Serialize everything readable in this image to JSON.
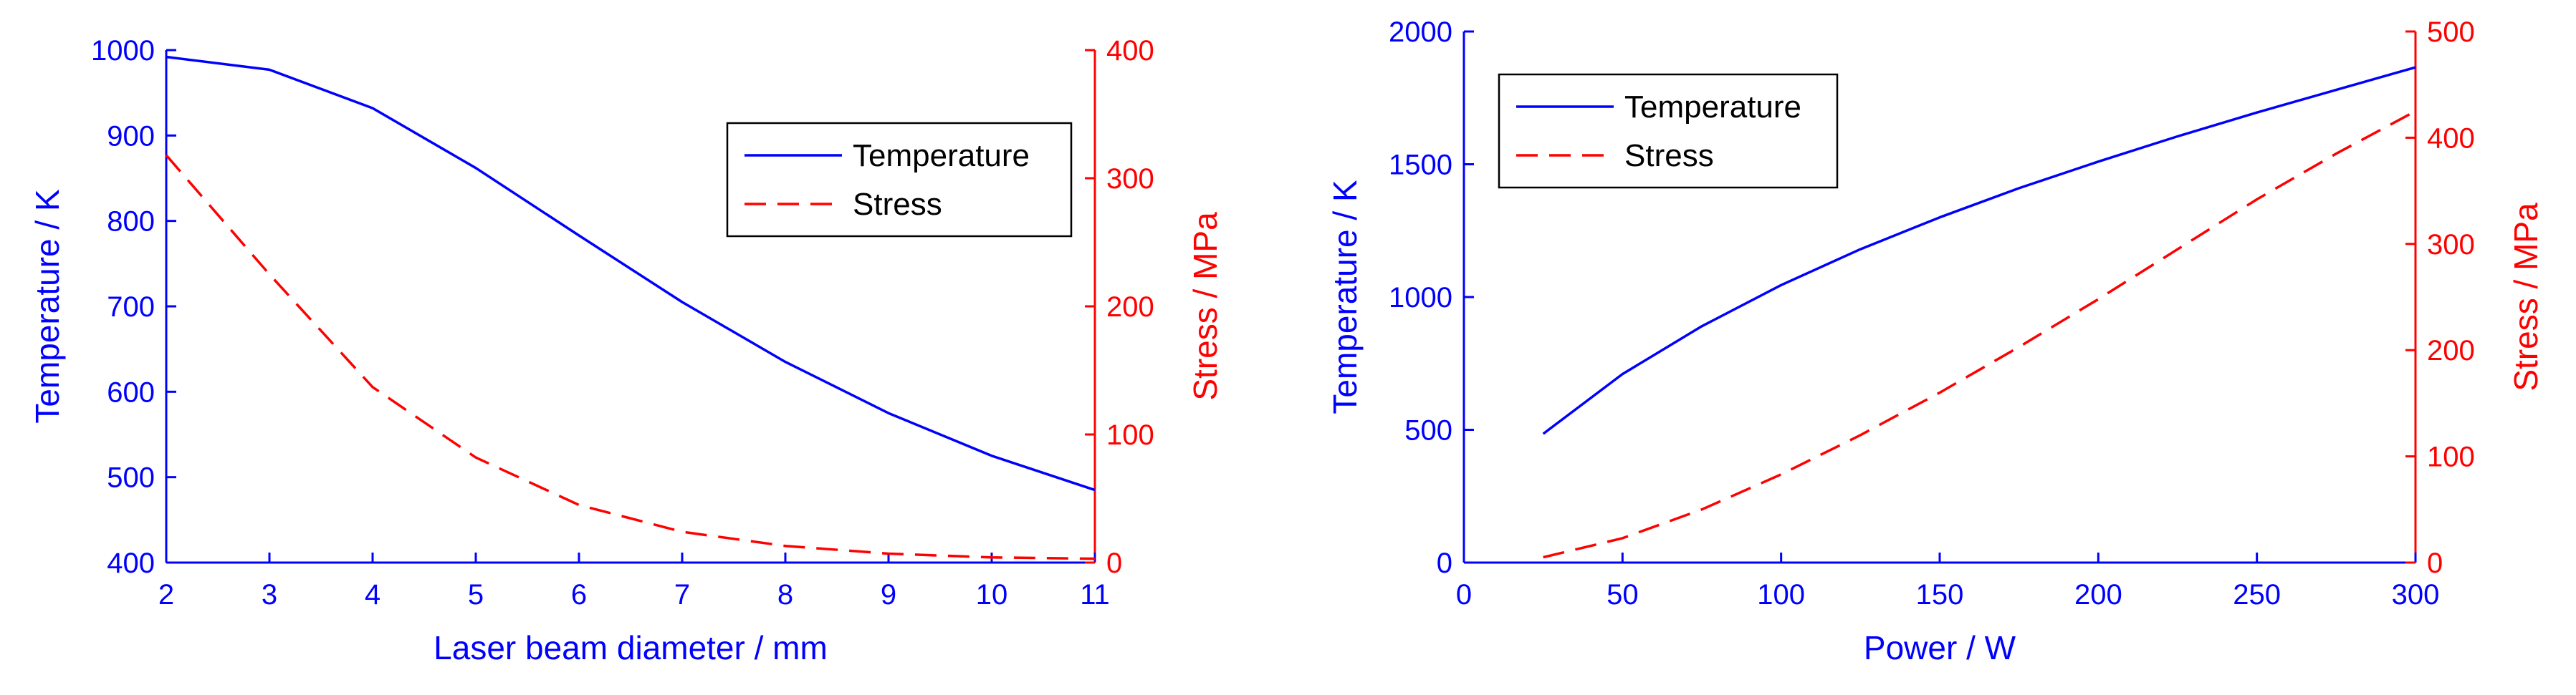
{
  "chart_data": [
    {
      "type": "line",
      "xlabel": "Laser beam diameter / mm",
      "ylabel_left": "Temperature / K",
      "ylabel_right": "Stress / MPa",
      "xlim": [
        2,
        11
      ],
      "ylim_left": [
        400,
        1000
      ],
      "ylim_right": [
        0,
        400
      ],
      "xticks": [
        2,
        3,
        4,
        5,
        6,
        7,
        8,
        9,
        10,
        11
      ],
      "yticks_left": [
        400,
        500,
        600,
        700,
        800,
        900,
        1000
      ],
      "yticks_right": [
        0,
        100,
        200,
        300,
        400
      ],
      "grid": false,
      "legend_position": "top-right",
      "series": [
        {
          "name": "Temperature",
          "axis": "left",
          "style": "solid",
          "color": "#0000ff",
          "x": [
            2,
            3,
            4,
            5,
            6,
            7,
            8,
            9,
            10,
            11
          ],
          "y": [
            992,
            977,
            932,
            862,
            783,
            705,
            635,
            575,
            525,
            485
          ]
        },
        {
          "name": "Stress",
          "axis": "right",
          "style": "dashed",
          "color": "#ff0000",
          "x": [
            2,
            3,
            4,
            5,
            6,
            7,
            8,
            9,
            10,
            11
          ],
          "y": [
            318,
            225,
            137,
            82,
            45,
            24,
            13,
            7,
            4,
            3
          ]
        }
      ]
    },
    {
      "type": "line",
      "xlabel": "Power / W",
      "ylabel_left": "Temperature / K",
      "ylabel_right": "Stress / MPa",
      "xlim": [
        0,
        300
      ],
      "ylim_left": [
        0,
        2000
      ],
      "ylim_right": [
        0,
        500
      ],
      "xticks": [
        0,
        50,
        100,
        150,
        200,
        250,
        300
      ],
      "yticks_left": [
        0,
        500,
        1000,
        1500,
        2000
      ],
      "yticks_right": [
        0,
        100,
        200,
        300,
        400,
        500
      ],
      "grid": false,
      "legend_position": "top-left",
      "series": [
        {
          "name": "Temperature",
          "axis": "left",
          "style": "solid",
          "color": "#0000ff",
          "x": [
            25,
            50,
            75,
            100,
            125,
            150,
            175,
            200,
            225,
            250,
            275,
            300
          ],
          "y": [
            485,
            710,
            890,
            1045,
            1180,
            1300,
            1410,
            1510,
            1605,
            1695,
            1780,
            1865
          ]
        },
        {
          "name": "Stress",
          "axis": "right",
          "style": "dashed",
          "color": "#ff0000",
          "x": [
            25,
            50,
            75,
            100,
            125,
            150,
            175,
            200,
            225,
            250,
            275,
            300
          ],
          "y": [
            5,
            23,
            50,
            83,
            120,
            160,
            203,
            248,
            295,
            342,
            385,
            425
          ]
        }
      ]
    }
  ]
}
